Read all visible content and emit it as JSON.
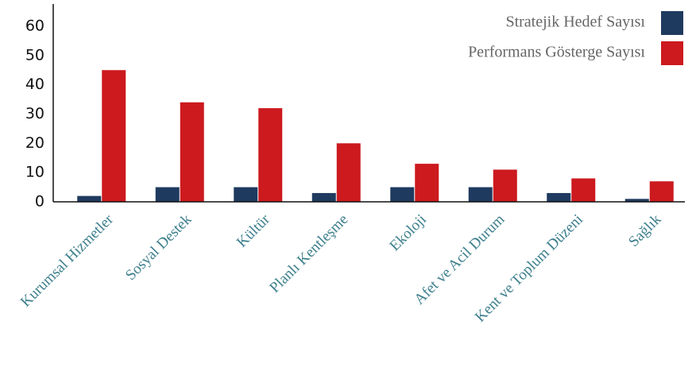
{
  "chart_data": {
    "type": "bar",
    "categories": [
      "Kurumsal Hizmetler",
      "Sosyal Destek",
      "Kültür",
      "Planlı Kentleşme",
      "Ekoloji",
      "Afet ve Acil Durum",
      "Kent ve Toplum Düzeni",
      "Sağlık"
    ],
    "series": [
      {
        "name": "Stratejik Hedef Sayısı",
        "color": "#1f3a5f",
        "values": [
          2,
          5,
          5,
          3,
          5,
          5,
          3,
          1
        ]
      },
      {
        "name": "Performans Gösterge Sayısı",
        "color": "#cc1a1f",
        "values": [
          45,
          34,
          32,
          20,
          13,
          11,
          8,
          7
        ]
      }
    ],
    "ylim": [
      0,
      60
    ],
    "yticks": [
      0,
      10,
      20,
      30,
      40,
      50,
      60
    ],
    "legend": "top-right"
  }
}
